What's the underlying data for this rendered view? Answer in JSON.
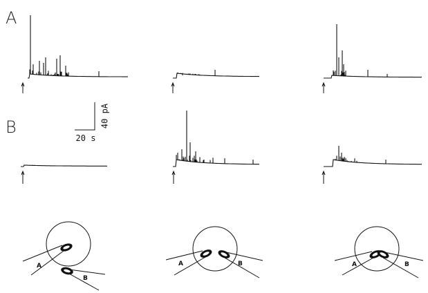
{
  "panels": [
    {
      "label": "A"
    },
    {
      "label": "B"
    }
  ],
  "scale_bar": {
    "vertical": "40 pA",
    "horizontal": "20 s"
  },
  "diagrams": [
    {
      "pipette_a": "A",
      "pipette_b": "B"
    },
    {
      "pipette_a": "A",
      "pipette_b": "B"
    },
    {
      "pipette_a": "A",
      "pipette_b": "B"
    }
  ]
}
